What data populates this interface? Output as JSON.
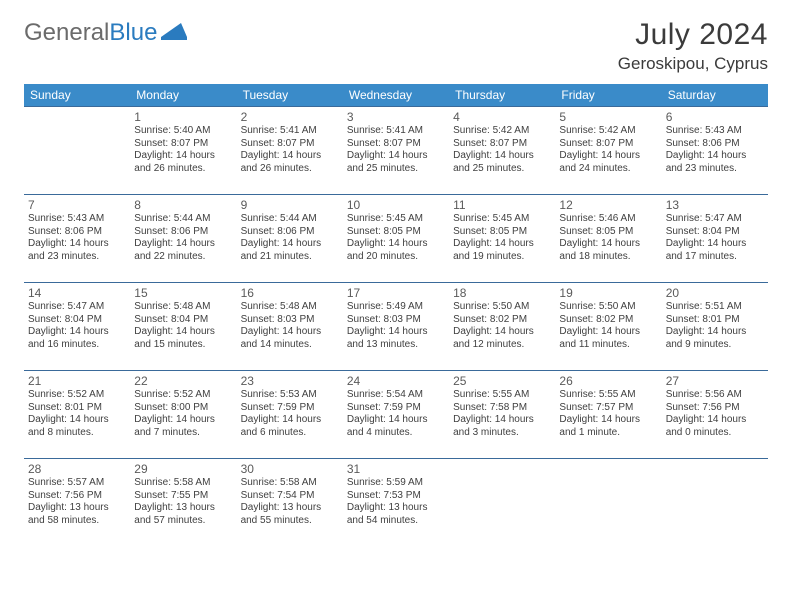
{
  "brand": {
    "part1": "General",
    "part2": "Blue"
  },
  "title": "July 2024",
  "location": "Geroskipou, Cyprus",
  "header_bg": "#3a8bc9",
  "weekdays": [
    "Sunday",
    "Monday",
    "Tuesday",
    "Wednesday",
    "Thursday",
    "Friday",
    "Saturday"
  ],
  "weeks": [
    [
      null,
      {
        "d": "1",
        "r": "Sunrise: 5:40 AM",
        "s": "Sunset: 8:07 PM",
        "dl1": "Daylight: 14 hours",
        "dl2": "and 26 minutes."
      },
      {
        "d": "2",
        "r": "Sunrise: 5:41 AM",
        "s": "Sunset: 8:07 PM",
        "dl1": "Daylight: 14 hours",
        "dl2": "and 26 minutes."
      },
      {
        "d": "3",
        "r": "Sunrise: 5:41 AM",
        "s": "Sunset: 8:07 PM",
        "dl1": "Daylight: 14 hours",
        "dl2": "and 25 minutes."
      },
      {
        "d": "4",
        "r": "Sunrise: 5:42 AM",
        "s": "Sunset: 8:07 PM",
        "dl1": "Daylight: 14 hours",
        "dl2": "and 25 minutes."
      },
      {
        "d": "5",
        "r": "Sunrise: 5:42 AM",
        "s": "Sunset: 8:07 PM",
        "dl1": "Daylight: 14 hours",
        "dl2": "and 24 minutes."
      },
      {
        "d": "6",
        "r": "Sunrise: 5:43 AM",
        "s": "Sunset: 8:06 PM",
        "dl1": "Daylight: 14 hours",
        "dl2": "and 23 minutes."
      }
    ],
    [
      {
        "d": "7",
        "r": "Sunrise: 5:43 AM",
        "s": "Sunset: 8:06 PM",
        "dl1": "Daylight: 14 hours",
        "dl2": "and 23 minutes."
      },
      {
        "d": "8",
        "r": "Sunrise: 5:44 AM",
        "s": "Sunset: 8:06 PM",
        "dl1": "Daylight: 14 hours",
        "dl2": "and 22 minutes."
      },
      {
        "d": "9",
        "r": "Sunrise: 5:44 AM",
        "s": "Sunset: 8:06 PM",
        "dl1": "Daylight: 14 hours",
        "dl2": "and 21 minutes."
      },
      {
        "d": "10",
        "r": "Sunrise: 5:45 AM",
        "s": "Sunset: 8:05 PM",
        "dl1": "Daylight: 14 hours",
        "dl2": "and 20 minutes."
      },
      {
        "d": "11",
        "r": "Sunrise: 5:45 AM",
        "s": "Sunset: 8:05 PM",
        "dl1": "Daylight: 14 hours",
        "dl2": "and 19 minutes."
      },
      {
        "d": "12",
        "r": "Sunrise: 5:46 AM",
        "s": "Sunset: 8:05 PM",
        "dl1": "Daylight: 14 hours",
        "dl2": "and 18 minutes."
      },
      {
        "d": "13",
        "r": "Sunrise: 5:47 AM",
        "s": "Sunset: 8:04 PM",
        "dl1": "Daylight: 14 hours",
        "dl2": "and 17 minutes."
      }
    ],
    [
      {
        "d": "14",
        "r": "Sunrise: 5:47 AM",
        "s": "Sunset: 8:04 PM",
        "dl1": "Daylight: 14 hours",
        "dl2": "and 16 minutes."
      },
      {
        "d": "15",
        "r": "Sunrise: 5:48 AM",
        "s": "Sunset: 8:04 PM",
        "dl1": "Daylight: 14 hours",
        "dl2": "and 15 minutes."
      },
      {
        "d": "16",
        "r": "Sunrise: 5:48 AM",
        "s": "Sunset: 8:03 PM",
        "dl1": "Daylight: 14 hours",
        "dl2": "and 14 minutes."
      },
      {
        "d": "17",
        "r": "Sunrise: 5:49 AM",
        "s": "Sunset: 8:03 PM",
        "dl1": "Daylight: 14 hours",
        "dl2": "and 13 minutes."
      },
      {
        "d": "18",
        "r": "Sunrise: 5:50 AM",
        "s": "Sunset: 8:02 PM",
        "dl1": "Daylight: 14 hours",
        "dl2": "and 12 minutes."
      },
      {
        "d": "19",
        "r": "Sunrise: 5:50 AM",
        "s": "Sunset: 8:02 PM",
        "dl1": "Daylight: 14 hours",
        "dl2": "and 11 minutes."
      },
      {
        "d": "20",
        "r": "Sunrise: 5:51 AM",
        "s": "Sunset: 8:01 PM",
        "dl1": "Daylight: 14 hours",
        "dl2": "and 9 minutes."
      }
    ],
    [
      {
        "d": "21",
        "r": "Sunrise: 5:52 AM",
        "s": "Sunset: 8:01 PM",
        "dl1": "Daylight: 14 hours",
        "dl2": "and 8 minutes."
      },
      {
        "d": "22",
        "r": "Sunrise: 5:52 AM",
        "s": "Sunset: 8:00 PM",
        "dl1": "Daylight: 14 hours",
        "dl2": "and 7 minutes."
      },
      {
        "d": "23",
        "r": "Sunrise: 5:53 AM",
        "s": "Sunset: 7:59 PM",
        "dl1": "Daylight: 14 hours",
        "dl2": "and 6 minutes."
      },
      {
        "d": "24",
        "r": "Sunrise: 5:54 AM",
        "s": "Sunset: 7:59 PM",
        "dl1": "Daylight: 14 hours",
        "dl2": "and 4 minutes."
      },
      {
        "d": "25",
        "r": "Sunrise: 5:55 AM",
        "s": "Sunset: 7:58 PM",
        "dl1": "Daylight: 14 hours",
        "dl2": "and 3 minutes."
      },
      {
        "d": "26",
        "r": "Sunrise: 5:55 AM",
        "s": "Sunset: 7:57 PM",
        "dl1": "Daylight: 14 hours",
        "dl2": "and 1 minute."
      },
      {
        "d": "27",
        "r": "Sunrise: 5:56 AM",
        "s": "Sunset: 7:56 PM",
        "dl1": "Daylight: 14 hours",
        "dl2": "and 0 minutes."
      }
    ],
    [
      {
        "d": "28",
        "r": "Sunrise: 5:57 AM",
        "s": "Sunset: 7:56 PM",
        "dl1": "Daylight: 13 hours",
        "dl2": "and 58 minutes."
      },
      {
        "d": "29",
        "r": "Sunrise: 5:58 AM",
        "s": "Sunset: 7:55 PM",
        "dl1": "Daylight: 13 hours",
        "dl2": "and 57 minutes."
      },
      {
        "d": "30",
        "r": "Sunrise: 5:58 AM",
        "s": "Sunset: 7:54 PM",
        "dl1": "Daylight: 13 hours",
        "dl2": "and 55 minutes."
      },
      {
        "d": "31",
        "r": "Sunrise: 5:59 AM",
        "s": "Sunset: 7:53 PM",
        "dl1": "Daylight: 13 hours",
        "dl2": "and 54 minutes."
      },
      null,
      null,
      null
    ]
  ]
}
